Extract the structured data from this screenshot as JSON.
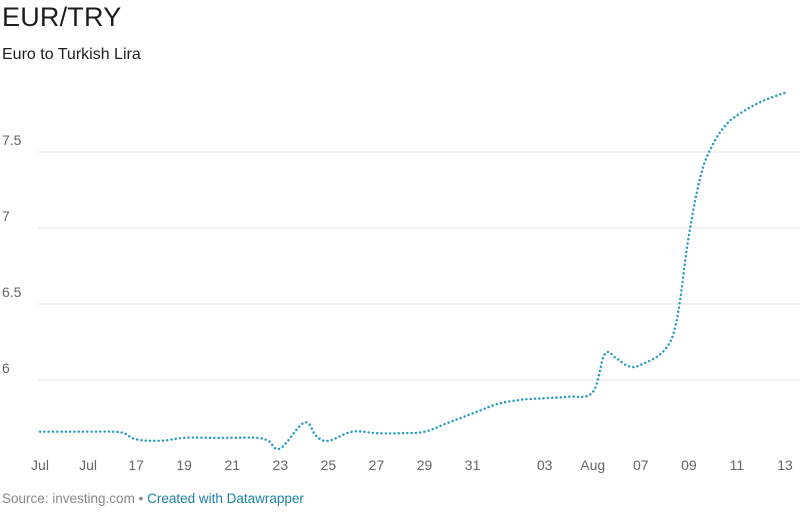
{
  "header": {
    "title": "EUR/TRY",
    "subtitle": "Euro to Turkish Lira"
  },
  "footer": {
    "source_prefix": "Source: investing.com",
    "separator": "•",
    "credit": "Created with Datawrapper"
  },
  "colors": {
    "line": "#1e9ac0",
    "grid": "#e3e3e3",
    "text": "#1d1d1d",
    "muted": "#888888",
    "link": "#1d81a2"
  },
  "chart_data": {
    "type": "line",
    "title": "EUR/TRY",
    "subtitle": "Euro to Turkish Lira",
    "xlabel": "",
    "ylabel": "",
    "line_style": "dotted",
    "grid": true,
    "ylim": [
      5.5,
      7.9
    ],
    "yticks": [
      6,
      6.5,
      7,
      7.5
    ],
    "ytick_labels": [
      "6",
      "6.5",
      "7",
      "7.5"
    ],
    "xticks": [
      {
        "day": 0,
        "label": "Jul"
      },
      {
        "day": 2,
        "label": "Jul"
      },
      {
        "day": 4,
        "label": "17"
      },
      {
        "day": 6,
        "label": "19"
      },
      {
        "day": 8,
        "label": "21"
      },
      {
        "day": 10,
        "label": "23"
      },
      {
        "day": 12,
        "label": "25"
      },
      {
        "day": 14,
        "label": "27"
      },
      {
        "day": 16,
        "label": "29"
      },
      {
        "day": 18,
        "label": "31"
      },
      {
        "day": 21,
        "label": "03"
      },
      {
        "day": 23,
        "label": "Aug"
      },
      {
        "day": 25,
        "label": "07"
      },
      {
        "day": 27,
        "label": "09"
      },
      {
        "day": 29,
        "label": "11"
      },
      {
        "day": 31,
        "label": "13"
      }
    ],
    "xlim": [
      0,
      31
    ],
    "series": [
      {
        "x": [
          0,
          1,
          2,
          3,
          3.5,
          4,
          5,
          6,
          7,
          8,
          9,
          9.5,
          10,
          11,
          11.5,
          12,
          13,
          14,
          15,
          16,
          17,
          18,
          19,
          20,
          21,
          22,
          23,
          23.5,
          24,
          24.5,
          25,
          26,
          26.5,
          27,
          27.5,
          28,
          28.5,
          29,
          30,
          31
        ],
        "y": [
          5.66,
          5.66,
          5.66,
          5.66,
          5.65,
          5.61,
          5.6,
          5.62,
          5.62,
          5.62,
          5.62,
          5.6,
          5.55,
          5.72,
          5.63,
          5.6,
          5.66,
          5.65,
          5.65,
          5.66,
          5.72,
          5.78,
          5.84,
          5.87,
          5.88,
          5.89,
          5.92,
          6.17,
          6.14,
          6.09,
          6.1,
          6.2,
          6.4,
          6.95,
          7.35,
          7.55,
          7.67,
          7.74,
          7.83,
          7.89
        ]
      }
    ]
  }
}
